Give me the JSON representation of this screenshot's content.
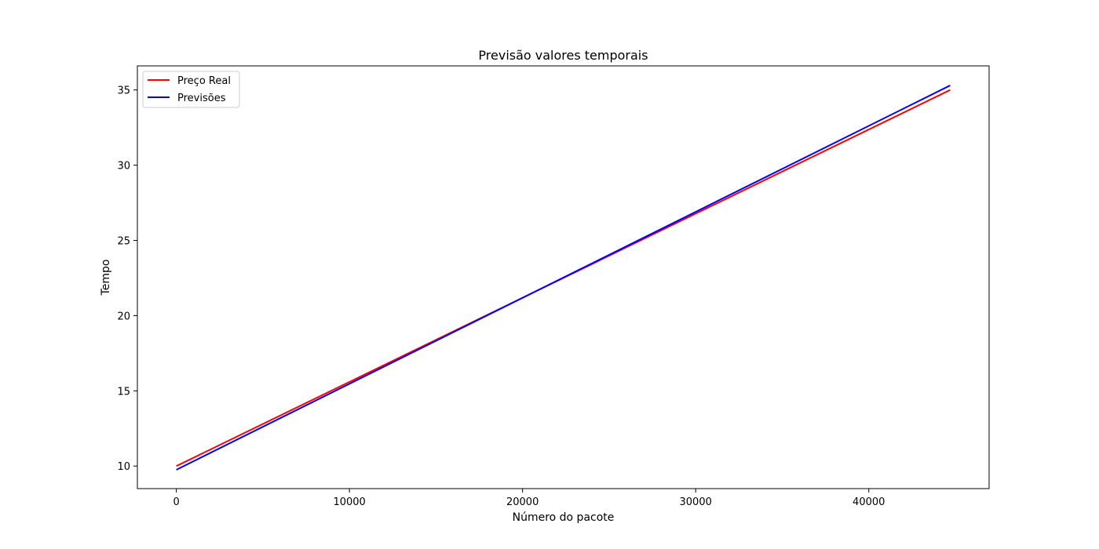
{
  "chart_data": {
    "type": "line",
    "title": "Previsão valores temporais",
    "xlabel": "Número do pacote",
    "ylabel": "Tempo",
    "xlim": [
      -2250,
      46950
    ],
    "ylim": [
      8.5,
      36.6
    ],
    "x_ticks": [
      0,
      10000,
      20000,
      30000,
      40000
    ],
    "y_ticks": [
      10,
      15,
      20,
      25,
      30,
      35
    ],
    "grid": false,
    "legend_position": "upper-left",
    "series": [
      {
        "name": "Preço Real",
        "color": "#ff0000",
        "x": [
          0,
          44700
        ],
        "y": [
          10.0,
          35.0
        ]
      },
      {
        "name": "Previsões",
        "color": "#0000ff",
        "x": [
          0,
          44700
        ],
        "y": [
          9.75,
          35.3
        ]
      }
    ]
  }
}
